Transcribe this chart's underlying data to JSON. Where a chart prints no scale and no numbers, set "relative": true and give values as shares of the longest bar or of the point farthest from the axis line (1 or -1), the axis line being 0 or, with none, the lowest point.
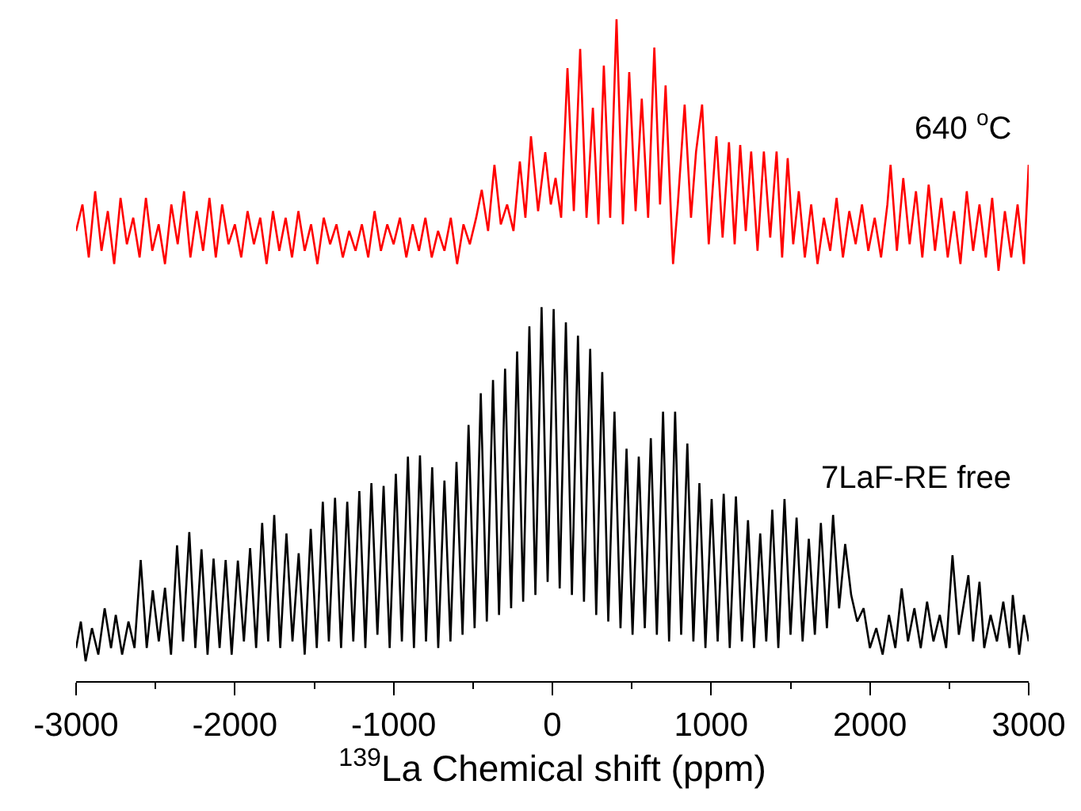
{
  "chart_data": {
    "type": "line",
    "relative": true,
    "xlabel": "$^{139}$La Chemical shift (ppm)",
    "xlim": [
      -3000,
      3000
    ],
    "xticks": [
      -3000,
      {
        "value": -2500,
        "label": null
      },
      -2000,
      {
        "value": -1500,
        "label": null
      },
      -1000,
      {
        "value": -500,
        "label": null
      },
      0,
      {
        "value": 500,
        "label": null
      },
      1000,
      {
        "value": 1500,
        "label": null
      },
      2000,
      {
        "value": 2500,
        "label": null
      },
      3000
    ],
    "legend": false,
    "marker": "none",
    "line_style": "solid",
    "series": [
      {
        "name": "640 $^{o}$C",
        "color": "#ff0000",
        "x": [
          -3000,
          -2960,
          -2920,
          -2880,
          -2840,
          -2800,
          -2760,
          -2720,
          -2680,
          -2640,
          -2600,
          -2560,
          -2520,
          -2480,
          -2440,
          -2400,
          -2360,
          -2320,
          -2280,
          -2240,
          -2200,
          -2160,
          -2120,
          -2080,
          -2040,
          -2000,
          -1960,
          -1920,
          -1880,
          -1840,
          -1800,
          -1760,
          -1720,
          -1680,
          -1640,
          -1600,
          -1560,
          -1520,
          -1480,
          -1440,
          -1400,
          -1360,
          -1320,
          -1280,
          -1240,
          -1200,
          -1160,
          -1120,
          -1080,
          -1040,
          -1000,
          -960,
          -920,
          -880,
          -840,
          -800,
          -760,
          -720,
          -680,
          -640,
          -600,
          -560,
          -520,
          -480,
          -445,
          -405,
          -365,
          -325,
          -285,
          -245,
          -205,
          -170,
          -135,
          -90,
          -45,
          -10,
          20,
          55,
          95,
          135,
          175,
          215,
          255,
          290,
          324,
          364,
          404,
          444,
          484,
          524,
          563,
          603,
          642,
          678,
          713,
          760,
          790,
          833,
          873,
          905,
          943,
          985,
          1033,
          1072,
          1112,
          1148,
          1183,
          1218,
          1252,
          1292,
          1332,
          1372,
          1412,
          1447,
          1482,
          1517,
          1552,
          1590,
          1630,
          1670,
          1710,
          1750,
          1790,
          1830,
          1870,
          1910,
          1950,
          1990,
          2030,
          2070,
          2110,
          2130,
          2170,
          2210,
          2250,
          2290,
          2330,
          2370,
          2410,
          2450,
          2490,
          2530,
          2570,
          2610,
          2650,
          2690,
          2730,
          2770,
          2810,
          2850,
          2890,
          2930,
          2970,
          3000
        ],
        "values": [
          0.68,
          0.72,
          0.64,
          0.74,
          0.65,
          0.71,
          0.63,
          0.73,
          0.66,
          0.7,
          0.64,
          0.73,
          0.65,
          0.69,
          0.63,
          0.72,
          0.66,
          0.74,
          0.64,
          0.71,
          0.65,
          0.73,
          0.64,
          0.72,
          0.66,
          0.69,
          0.64,
          0.71,
          0.66,
          0.7,
          0.63,
          0.71,
          0.65,
          0.7,
          0.64,
          0.71,
          0.65,
          0.69,
          0.63,
          0.7,
          0.66,
          0.69,
          0.64,
          0.68,
          0.65,
          0.69,
          0.64,
          0.71,
          0.65,
          0.69,
          0.66,
          0.7,
          0.64,
          0.69,
          0.65,
          0.7,
          0.64,
          0.68,
          0.65,
          0.7,
          0.63,
          0.69,
          0.66,
          0.7,
          0.742,
          0.68,
          0.78,
          0.69,
          0.72,
          0.68,
          0.785,
          0.7,
          0.823,
          0.71,
          0.799,
          0.72,
          0.76,
          0.7,
          0.926,
          0.71,
          0.955,
          0.7,
          0.866,
          0.69,
          0.93,
          0.7,
          1.0,
          0.69,
          0.92,
          0.71,
          0.88,
          0.7,
          0.957,
          0.72,
          0.9,
          0.63,
          0.72,
          0.871,
          0.7,
          0.8,
          0.871,
          0.66,
          0.823,
          0.67,
          0.814,
          0.66,
          0.81,
          0.68,
          0.8,
          0.65,
          0.8,
          0.67,
          0.8,
          0.64,
          0.79,
          0.66,
          0.74,
          0.64,
          0.72,
          0.63,
          0.7,
          0.65,
          0.73,
          0.64,
          0.71,
          0.66,
          0.72,
          0.65,
          0.7,
          0.64,
          0.72,
          0.78,
          0.65,
          0.76,
          0.66,
          0.74,
          0.64,
          0.75,
          0.65,
          0.73,
          0.64,
          0.71,
          0.63,
          0.74,
          0.65,
          0.72,
          0.64,
          0.73,
          0.62,
          0.71,
          0.64,
          0.72,
          0.63,
          0.78
        ]
      },
      {
        "name": "7LaF-RE free",
        "color": "#000000",
        "x": [
          -3000,
          -2970,
          -2940,
          -2900,
          -2860,
          -2820,
          -2780,
          -2750,
          -2710,
          -2670,
          -2632,
          -2593,
          -2555,
          -2517,
          -2479,
          -2440,
          -2402,
          -2364,
          -2326,
          -2287,
          -2249,
          -2210,
          -2172,
          -2134,
          -2096,
          -2058,
          -2020,
          -1981,
          -1943,
          -1904,
          -1866,
          -1828,
          -1790,
          -1752,
          -1714,
          -1675,
          -1637,
          -1598,
          -1560,
          -1522,
          -1484,
          -1446,
          -1408,
          -1369,
          -1331,
          -1292,
          -1254,
          -1216,
          -1178,
          -1140,
          -1102,
          -1063,
          -1025,
          -986,
          -948,
          -910,
          -872,
          -834,
          -796,
          -757,
          -719,
          -680,
          -642,
          -604,
          -566,
          -528,
          -490,
          -451,
          -413,
          -374,
          -336,
          -298,
          -260,
          -222,
          -184,
          -145,
          -107,
          -68,
          -30,
          8,
          46,
          85,
          123,
          161,
          199,
          238,
          276,
          314,
          352,
          391,
          429,
          467,
          505,
          544,
          582,
          620,
          658,
          697,
          735,
          773,
          811,
          850,
          888,
          926,
          964,
          1003,
          1041,
          1079,
          1117,
          1156,
          1194,
          1232,
          1270,
          1309,
          1347,
          1385,
          1423,
          1462,
          1500,
          1538,
          1576,
          1615,
          1653,
          1691,
          1729,
          1768,
          1806,
          1844,
          1882,
          1920,
          1960,
          2000,
          2040,
          2080,
          2120,
          2160,
          2200,
          2240,
          2280,
          2320,
          2360,
          2400,
          2440,
          2480,
          2520,
          2560,
          2620,
          2650,
          2690,
          2720,
          2760,
          2800,
          2840,
          2880,
          2900,
          2940,
          2970,
          3000
        ],
        "values": [
          0.05,
          0.09,
          0.03,
          0.08,
          0.04,
          0.11,
          0.05,
          0.1,
          0.04,
          0.09,
          0.05,
          0.183,
          0.05,
          0.137,
          0.06,
          0.141,
          0.04,
          0.205,
          0.06,
          0.225,
          0.05,
          0.199,
          0.04,
          0.185,
          0.05,
          0.183,
          0.04,
          0.182,
          0.06,
          0.201,
          0.05,
          0.239,
          0.06,
          0.251,
          0.05,
          0.223,
          0.06,
          0.193,
          0.04,
          0.23,
          0.05,
          0.271,
          0.06,
          0.277,
          0.05,
          0.271,
          0.06,
          0.287,
          0.05,
          0.299,
          0.07,
          0.295,
          0.05,
          0.313,
          0.06,
          0.339,
          0.05,
          0.341,
          0.06,
          0.323,
          0.05,
          0.303,
          0.06,
          0.331,
          0.07,
          0.387,
          0.08,
          0.435,
          0.09,
          0.455,
          0.1,
          0.472,
          0.11,
          0.498,
          0.12,
          0.536,
          0.13,
          0.565,
          0.15,
          0.562,
          0.14,
          0.542,
          0.13,
          0.522,
          0.12,
          0.502,
          0.1,
          0.467,
          0.09,
          0.407,
          0.08,
          0.351,
          0.07,
          0.339,
          0.08,
          0.367,
          0.07,
          0.407,
          0.06,
          0.407,
          0.07,
          0.359,
          0.06,
          0.299,
          0.05,
          0.275,
          0.06,
          0.283,
          0.05,
          0.279,
          0.06,
          0.243,
          0.05,
          0.223,
          0.06,
          0.259,
          0.05,
          0.275,
          0.07,
          0.247,
          0.06,
          0.215,
          0.07,
          0.239,
          0.08,
          0.251,
          0.11,
          0.207,
          0.13,
          0.09,
          0.11,
          0.05,
          0.08,
          0.04,
          0.1,
          0.05,
          0.14,
          0.06,
          0.11,
          0.05,
          0.12,
          0.06,
          0.1,
          0.05,
          0.19,
          0.07,
          0.16,
          0.06,
          0.15,
          0.05,
          0.1,
          0.06,
          0.12,
          0.05,
          0.13,
          0.04,
          0.1,
          0.06
        ]
      }
    ]
  }
}
